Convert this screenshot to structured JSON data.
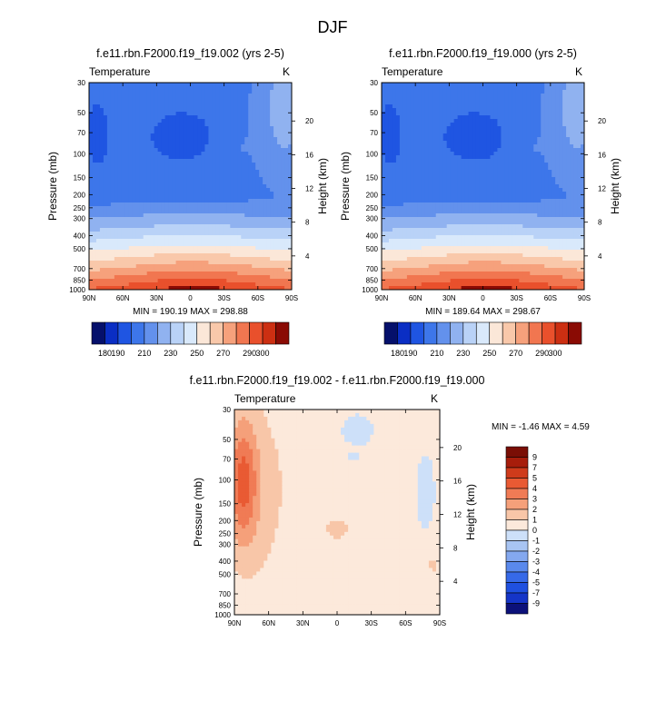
{
  "figure_title": "DJF",
  "colors": {
    "abs_levels": [
      "#05106b",
      "#0a2ec4",
      "#1f55e2",
      "#3d76ea",
      "#6391ec",
      "#90b2f0",
      "#b9d2f7",
      "#d9e9fb",
      "#fbe7d8",
      "#f9c8aa",
      "#f6a17c",
      "#f17650",
      "#e9502c",
      "#cc2f12",
      "#8a0b04"
    ],
    "diff_levels": [
      "#0c117a",
      "#1535c8",
      "#1f50e0",
      "#3669e8",
      "#5a89ec",
      "#84a8ef",
      "#a8c4f2",
      "#cde0f9",
      "#fce9db",
      "#f8c6a8",
      "#f5a07a",
      "#f07b55",
      "#e95a33",
      "#cf3b1b",
      "#a71d0b",
      "#7a0e05"
    ]
  },
  "chart_data": [
    {
      "type": "heatmap",
      "title": "f.e11.rbn.F2000.f19_f19.002 (yrs 2-5)",
      "left_label": "Temperature",
      "right_label": "K",
      "xlabel": "",
      "ylabel": "Pressure (mb)",
      "y2label": "Height (km)",
      "x_ticks": [
        "90N",
        "60N",
        "30N",
        "0",
        "30S",
        "60S",
        "90S"
      ],
      "y_ticks": [
        "30",
        "50",
        "70",
        "100",
        "150",
        "200",
        "250",
        "300",
        "400",
        "500",
        "700",
        "850",
        "1000"
      ],
      "y2_ticks": [
        "20",
        "16",
        "12",
        "8",
        "4"
      ],
      "y_scale": "log",
      "ylim": [
        1000,
        30
      ],
      "stats": "MIN = 190.19   MAX = 298.88",
      "min": 190.19,
      "max": 298.88,
      "colorbar_labels": [
        "180",
        "190",
        "210",
        "230",
        "250",
        "270",
        "290",
        "300"
      ],
      "levels": [
        180,
        190,
        200,
        210,
        220,
        230,
        240,
        250,
        260,
        270,
        280,
        290,
        300
      ]
    },
    {
      "type": "heatmap",
      "title": "f.e11.rbn.F2000.f19_f19.000 (yrs 2-5)",
      "left_label": "Temperature",
      "right_label": "K",
      "xlabel": "",
      "ylabel": "Pressure (mb)",
      "y2label": "Height (km)",
      "x_ticks": [
        "90N",
        "60N",
        "30N",
        "0",
        "30S",
        "60S",
        "90S"
      ],
      "y_ticks": [
        "30",
        "50",
        "70",
        "100",
        "150",
        "200",
        "250",
        "300",
        "400",
        "500",
        "700",
        "850",
        "1000"
      ],
      "y2_ticks": [
        "20",
        "16",
        "12",
        "8",
        "4"
      ],
      "y_scale": "log",
      "ylim": [
        1000,
        30
      ],
      "stats": "MIN = 189.64   MAX = 298.67",
      "min": 189.64,
      "max": 298.67,
      "colorbar_labels": [
        "180",
        "190",
        "210",
        "230",
        "250",
        "270",
        "290",
        "300"
      ],
      "levels": [
        180,
        190,
        200,
        210,
        220,
        230,
        240,
        250,
        260,
        270,
        280,
        290,
        300
      ]
    },
    {
      "type": "heatmap",
      "title": "f.e11.rbn.F2000.f19_f19.002 - f.e11.rbn.F2000.f19_f19.000",
      "left_label": "Temperature",
      "right_label": "K",
      "xlabel": "",
      "ylabel": "Pressure (mb)",
      "y2label": "Height (km)",
      "x_ticks": [
        "90N",
        "60N",
        "30N",
        "0",
        "30S",
        "60S",
        "90S"
      ],
      "y_ticks": [
        "30",
        "50",
        "70",
        "100",
        "150",
        "200",
        "250",
        "300",
        "400",
        "500",
        "700",
        "850",
        "1000"
      ],
      "y2_ticks": [
        "20",
        "16",
        "12",
        "8",
        "4"
      ],
      "y_scale": "log",
      "ylim": [
        1000,
        30
      ],
      "stats": "MIN =  -1.46   MAX =    4.59",
      "min": -1.46,
      "max": 4.59,
      "colorbar_labels": [
        "9",
        "7",
        "5",
        "4",
        "3",
        "2",
        "1",
        "0",
        "-1",
        "-2",
        "-3",
        "-4",
        "-5",
        "-7",
        "-9"
      ],
      "levels": [
        -9,
        -7,
        -5,
        -4,
        -3,
        -2,
        -1,
        0,
        1,
        2,
        3,
        4,
        5,
        7,
        9
      ]
    }
  ]
}
